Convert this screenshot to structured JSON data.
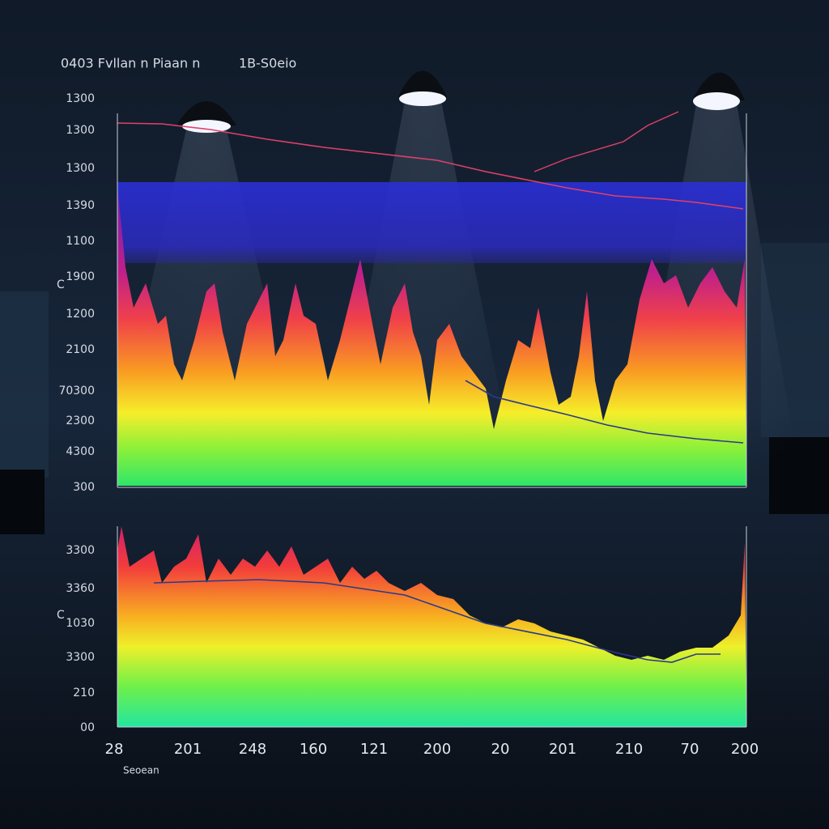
{
  "header": {
    "title": "0403 Fvllan n Piaan n",
    "subtitle": "1B-S0eio"
  },
  "top_panel": {
    "axis_symbol": "C",
    "y_labels": [
      "1300",
      "1300",
      "1300",
      "1390",
      "1100",
      "1900",
      "1200",
      "2100",
      "70300",
      "2300",
      "4300",
      "300"
    ]
  },
  "bottom_panel": {
    "axis_symbol": "C",
    "y_labels": [
      "3300",
      "3360",
      "1030",
      "3300",
      "210",
      "00"
    ]
  },
  "x_axis": {
    "labels": [
      "28",
      "201",
      "248",
      "160",
      "121",
      "200",
      "20",
      "201",
      "210",
      "70",
      "200"
    ],
    "caption": "Seoean"
  }
}
